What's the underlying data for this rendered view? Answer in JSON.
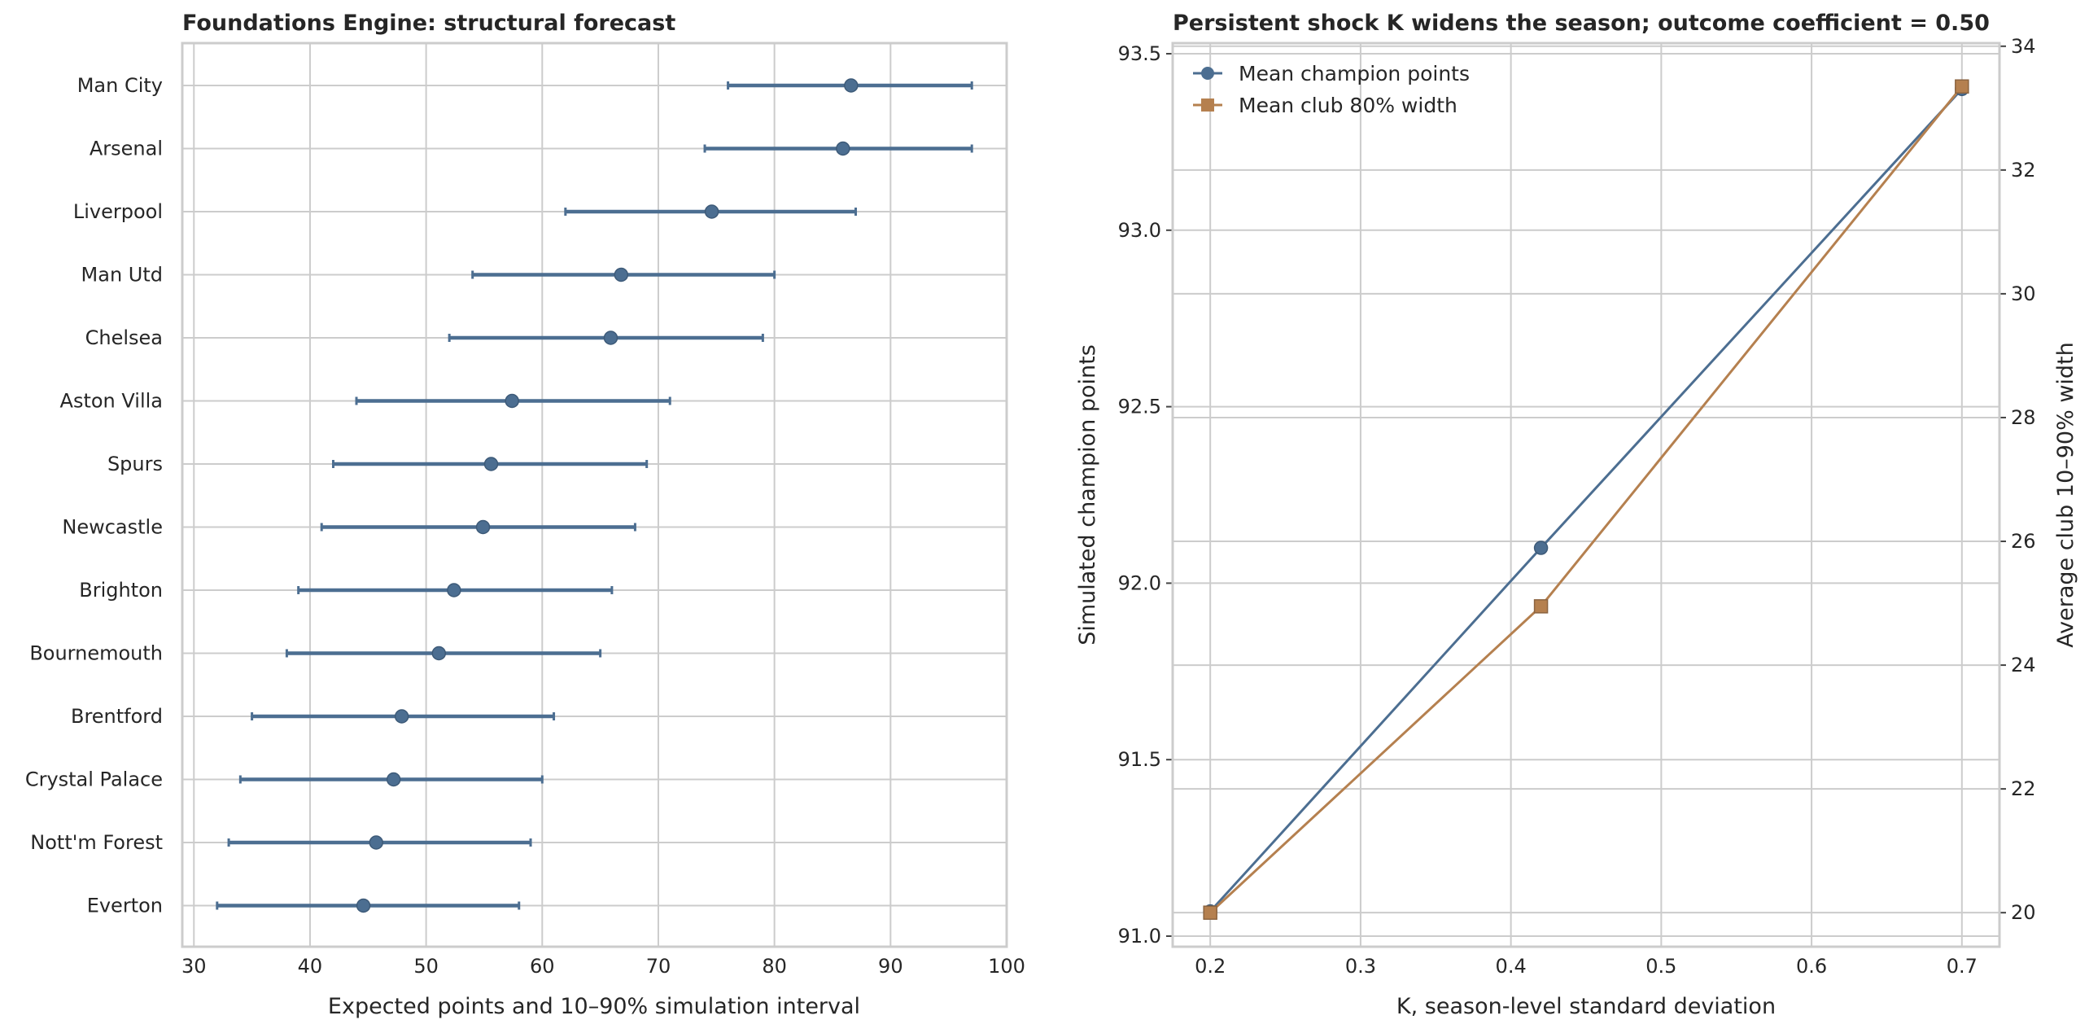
{
  "chart_data": [
    {
      "type": "errorbar",
      "title": "Foundations Engine: structural forecast",
      "xlabel": "Expected points and 10–90% simulation interval",
      "ylabel": "",
      "xlim": [
        29,
        100
      ],
      "xticks": [
        30,
        40,
        50,
        60,
        70,
        80,
        90,
        100
      ],
      "grid": true,
      "color": "#4c6e91",
      "teams": [
        {
          "name": "Man City",
          "mean": 86.6,
          "low": 76,
          "high": 97
        },
        {
          "name": "Arsenal",
          "mean": 85.9,
          "low": 74,
          "high": 97
        },
        {
          "name": "Liverpool",
          "mean": 74.6,
          "low": 62,
          "high": 87
        },
        {
          "name": "Man Utd",
          "mean": 66.8,
          "low": 54,
          "high": 80
        },
        {
          "name": "Chelsea",
          "mean": 65.9,
          "low": 52,
          "high": 79
        },
        {
          "name": "Aston Villa",
          "mean": 57.4,
          "low": 44,
          "high": 71
        },
        {
          "name": "Spurs",
          "mean": 55.6,
          "low": 42,
          "high": 69
        },
        {
          "name": "Newcastle",
          "mean": 54.9,
          "low": 41,
          "high": 68
        },
        {
          "name": "Brighton",
          "mean": 52.4,
          "low": 39,
          "high": 66
        },
        {
          "name": "Bournemouth",
          "mean": 51.1,
          "low": 38,
          "high": 65
        },
        {
          "name": "Brentford",
          "mean": 47.9,
          "low": 35,
          "high": 61
        },
        {
          "name": "Crystal Palace",
          "mean": 47.2,
          "low": 34,
          "high": 60
        },
        {
          "name": "Nott'm Forest",
          "mean": 45.7,
          "low": 33,
          "high": 59
        },
        {
          "name": "Everton",
          "mean": 44.6,
          "low": 32,
          "high": 58
        }
      ]
    },
    {
      "type": "line",
      "title": "Persistent shock K widens the season; outcome coefficient = 0.50",
      "xlabel": "K, season-level standard deviation",
      "ylabel": "Simulated champion points",
      "y2label": "Average club 10–90% width",
      "xlim": [
        0.175,
        0.725
      ],
      "ylim": [
        90.97,
        93.53
      ],
      "y2lim": [
        19.45,
        34.05
      ],
      "xticks": [
        0.2,
        0.3,
        0.4,
        0.5,
        0.6,
        0.7
      ],
      "yticks": [
        91.0,
        91.5,
        92.0,
        92.5,
        93.0,
        93.5
      ],
      "y2ticks": [
        20,
        22,
        24,
        26,
        28,
        30,
        32,
        34
      ],
      "grid": true,
      "legend_position": "upper-left",
      "x": [
        0.2,
        0.42,
        0.7
      ],
      "series": [
        {
          "name": "Mean champion points",
          "axis": "left",
          "marker": "circle",
          "color": "#4c6e91",
          "values": [
            91.07,
            92.1,
            93.4
          ]
        },
        {
          "name": "Mean club 80% width",
          "axis": "right",
          "marker": "square",
          "color": "#b5804f",
          "values": [
            20.0,
            24.95,
            33.35
          ]
        }
      ]
    }
  ]
}
